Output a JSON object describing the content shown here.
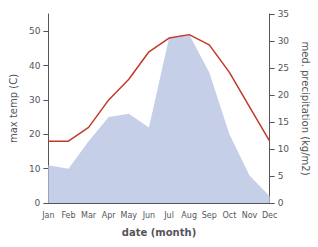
{
  "chart_data": {
    "type": "line",
    "xlabel": "date (month)",
    "ylabel": "max temp (C)",
    "y2label": "med. precipitation (kg/m2)",
    "categories": [
      "Jan",
      "Feb",
      "Mar",
      "Apr",
      "May",
      "Jun",
      "Jul",
      "Aug",
      "Sep",
      "Oct",
      "Nov",
      "Dec"
    ],
    "series": [
      {
        "type": "area",
        "color": "#c5cfe8",
        "values": [
          11,
          10,
          18,
          25,
          26,
          22,
          48,
          49,
          38,
          20,
          8,
          2
        ]
      },
      {
        "type": "line",
        "color": "#c0392b",
        "values": [
          18,
          18,
          22,
          30,
          36,
          44,
          48,
          49,
          46,
          38,
          28,
          18
        ]
      }
    ],
    "ylim": [
      0,
      55
    ],
    "yticks": [
      0,
      10,
      20,
      30,
      40,
      50
    ],
    "y2lim": [
      0,
      35
    ],
    "y2ticks": [
      0,
      5,
      10,
      15,
      20,
      25,
      30,
      35
    ],
    "grid": false
  }
}
